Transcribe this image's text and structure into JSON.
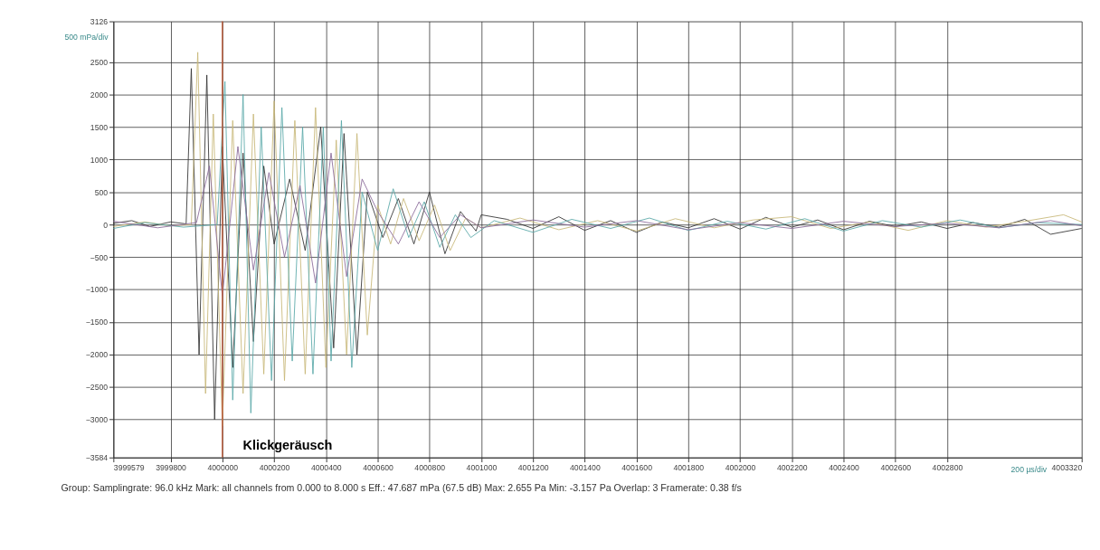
{
  "chart_data": {
    "type": "line",
    "annotations": [
      "500 mPa/div",
      "200 µs/div",
      "Klickgeräusch",
      "Group:",
      "Samplingrate: 96.0 kHz",
      "Mark: all channels from 0.000 to 8.000 s",
      "Eff.: 47.687 mPa (67.5 dB)",
      "Max: 2.655 Pa",
      "Min: -3.157 Pa",
      "Overlap: 3",
      "Framerate: 0.38 f/s"
    ],
    "xlim": [
      3999579,
      4003320
    ],
    "ylim": [
      -3584,
      3126
    ],
    "xticks": [
      3999579,
      3999800,
      4000000,
      4000200,
      4000400,
      4000600,
      4000800,
      4001000,
      4001200,
      4001400,
      4001600,
      4001800,
      4002000,
      4002200,
      4002400,
      4002600,
      4002800,
      4003320
    ],
    "yticks": [
      -3584,
      -3000,
      -2500,
      -2000,
      -1500,
      -1000,
      -500,
      0,
      500,
      1000,
      1500,
      2000,
      2500,
      3126
    ],
    "grid": true,
    "legend": false,
    "marker": "none",
    "line_style": "solid",
    "ref_lines": [
      {
        "axis": "x",
        "value": 4000000,
        "color": "#c06040"
      }
    ],
    "series": [
      {
        "color": "#333333",
        "x": [
          3999579,
          3999650,
          3999720,
          3999800,
          3999860,
          3999880,
          3999910,
          3999940,
          3999970,
          4000000,
          4000040,
          4000080,
          4000120,
          4000160,
          4000200,
          4000260,
          4000320,
          4000380,
          4000430,
          4000470,
          4000520,
          4000560,
          4000620,
          4000680,
          4000740,
          4000800,
          4000860,
          4000920,
          4000980,
          4001000,
          4001100,
          4001200,
          4001300,
          4001400,
          4001500,
          4001600,
          4001700,
          4001800,
          4001900,
          4002000,
          4002100,
          4002200,
          4002300,
          4002400,
          4002500,
          4002600,
          4002700,
          4002800,
          4002900,
          4003000,
          4003100,
          4003200,
          4003320
        ],
        "values": [
          20,
          60,
          -30,
          40,
          10,
          2400,
          -2000,
          2300,
          -3000,
          1200,
          -2200,
          1100,
          -1800,
          900,
          -300,
          700,
          -400,
          1500,
          -1900,
          1400,
          -2000,
          500,
          -200,
          400,
          -300,
          500,
          -450,
          200,
          -100,
          150,
          80,
          -60,
          120,
          -90,
          60,
          -120,
          40,
          -50,
          90,
          -70,
          110,
          -40,
          70,
          -80,
          50,
          -30,
          40,
          -60,
          30,
          -40,
          80,
          -150,
          -60
        ]
      },
      {
        "color": "#c8b878",
        "x": [
          3999579,
          3999700,
          3999800,
          3999880,
          3999905,
          3999935,
          3999965,
          4000000,
          4000040,
          4000080,
          4000120,
          4000160,
          4000200,
          4000240,
          4000280,
          4000320,
          4000360,
          4000400,
          4000440,
          4000480,
          4000520,
          4000560,
          4000600,
          4000650,
          4000700,
          4000760,
          4000820,
          4000880,
          4000940,
          4001000,
          4001150,
          4001300,
          4001450,
          4001600,
          4001750,
          4001900,
          4002050,
          4002200,
          4002350,
          4002500,
          4002650,
          4002800,
          4002950,
          4003100,
          4003250,
          4003320
        ],
        "values": [
          -30,
          40,
          -20,
          0,
          2650,
          -2600,
          1700,
          -3100,
          1600,
          -2600,
          1700,
          -2300,
          1900,
          -2400,
          1600,
          -2300,
          1800,
          -2200,
          1300,
          -2000,
          1400,
          -1700,
          300,
          -300,
          400,
          -250,
          300,
          -400,
          100,
          -50,
          100,
          -80,
          60,
          -100,
          90,
          -50,
          70,
          120,
          -60,
          40,
          -90,
          60,
          -40,
          50,
          150,
          40
        ]
      },
      {
        "color": "#5aa8a8",
        "x": [
          3999579,
          3999700,
          3999850,
          3999980,
          4000010,
          4000040,
          4000080,
          4000110,
          4000150,
          4000190,
          4000230,
          4000270,
          4000310,
          4000350,
          4000390,
          4000420,
          4000460,
          4000500,
          4000540,
          4000600,
          4000660,
          4000720,
          4000780,
          4000840,
          4000900,
          4000960,
          4001050,
          4001200,
          4001350,
          4001500,
          4001650,
          4001800,
          4001950,
          4002100,
          4002250,
          4002400,
          4002550,
          4002700,
          4002850,
          4003000,
          4003150,
          4003320
        ],
        "values": [
          -60,
          30,
          -40,
          0,
          2200,
          -2700,
          2000,
          -2900,
          1500,
          -2400,
          1800,
          -2100,
          1500,
          -2300,
          1500,
          -2100,
          1600,
          -2200,
          500,
          -400,
          550,
          -200,
          350,
          -350,
          150,
          -200,
          60,
          -120,
          80,
          -60,
          100,
          -90,
          50,
          -70,
          90,
          -100,
          60,
          -40,
          70,
          -50,
          30,
          0
        ]
      },
      {
        "color": "#8a6a9a",
        "x": [
          3999579,
          3999750,
          3999900,
          3999950,
          4000000,
          4000060,
          4000120,
          4000180,
          4000240,
          4000300,
          4000360,
          4000420,
          4000480,
          4000540,
          4000600,
          4000680,
          4000760,
          4000840,
          4000920,
          4001000,
          4001200,
          4001400,
          4001600,
          4001800,
          4002000,
          4002200,
          4002400,
          4002600,
          4002800,
          4003000,
          4003200,
          4003320
        ],
        "values": [
          50,
          -50,
          30,
          900,
          -1100,
          1200,
          -700,
          800,
          -500,
          600,
          -900,
          1100,
          -800,
          700,
          200,
          -300,
          350,
          -200,
          150,
          -50,
          70,
          -40,
          60,
          -80,
          30,
          -60,
          50,
          -30,
          20,
          -50,
          60,
          -20
        ]
      }
    ]
  }
}
